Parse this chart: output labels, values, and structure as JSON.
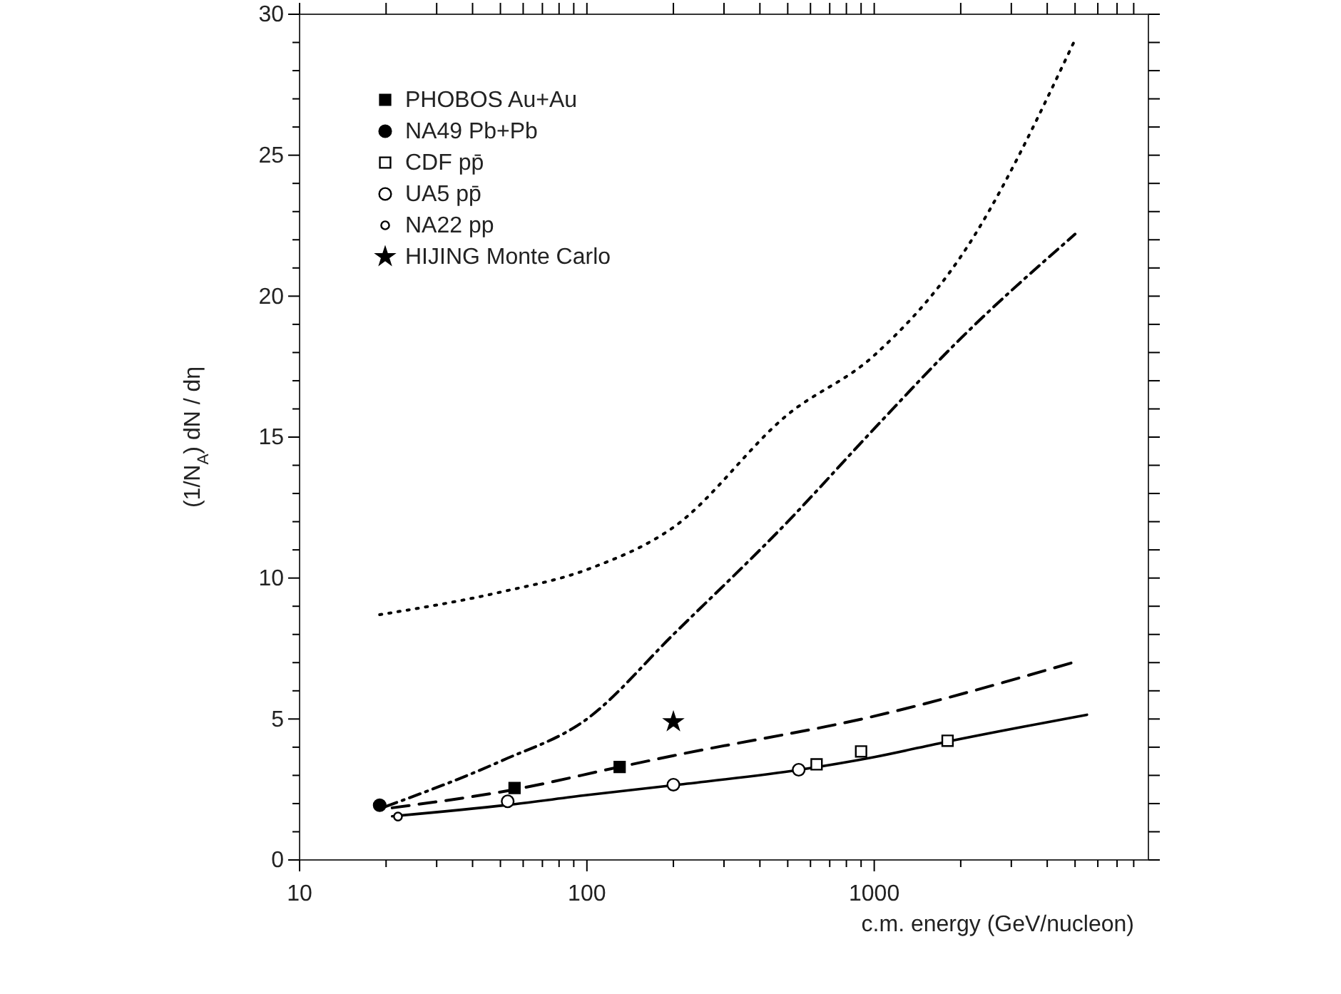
{
  "chart_data": {
    "type": "line",
    "xlabel": "c.m. energy (GeV/nucleon)",
    "ylabel": "(1/N$_{A}$) dN / dη",
    "log": "x",
    "legend": "top left",
    "grid": false,
    "xlim": [
      10,
      9000
    ],
    "xticks": [
      10,
      {
        "value": 20,
        "label": null
      },
      {
        "value": 30,
        "label": null
      },
      {
        "value": 40,
        "label": null
      },
      {
        "value": 50,
        "label": null
      },
      {
        "value": 60,
        "label": null
      },
      {
        "value": 70,
        "label": null
      },
      {
        "value": 80,
        "label": null
      },
      {
        "value": 90,
        "label": null
      },
      100,
      {
        "value": 200,
        "label": null
      },
      {
        "value": 300,
        "label": null
      },
      {
        "value": 400,
        "label": null
      },
      {
        "value": 500,
        "label": null
      },
      {
        "value": 600,
        "label": null
      },
      {
        "value": 700,
        "label": null
      },
      {
        "value": 800,
        "label": null
      },
      {
        "value": 900,
        "label": null
      },
      1000,
      {
        "value": 2000,
        "label": null
      },
      {
        "value": 3000,
        "label": null
      },
      {
        "value": 4000,
        "label": null
      },
      {
        "value": 5000,
        "label": null
      },
      {
        "value": 6000,
        "label": null
      },
      {
        "value": 7000,
        "label": null
      },
      {
        "value": 8000,
        "label": null
      }
    ],
    "ylim": [
      0,
      30
    ],
    "yticks": [
      0,
      {
        "value": 1,
        "label": null
      },
      {
        "value": 2,
        "label": null
      },
      {
        "value": 3,
        "label": null
      },
      {
        "value": 4,
        "label": null
      },
      5,
      {
        "value": 6,
        "label": null
      },
      {
        "value": 7,
        "label": null
      },
      {
        "value": 8,
        "label": null
      },
      {
        "value": 9,
        "label": null
      },
      10,
      {
        "value": 11,
        "label": null
      },
      {
        "value": 12,
        "label": null
      },
      {
        "value": 13,
        "label": null
      },
      {
        "value": 14,
        "label": null
      },
      15,
      {
        "value": 16,
        "label": null
      },
      {
        "value": 17,
        "label": null
      },
      {
        "value": 18,
        "label": null
      },
      {
        "value": 19,
        "label": null
      },
      20,
      {
        "value": 21,
        "label": null
      },
      {
        "value": 22,
        "label": null
      },
      {
        "value": 23,
        "label": null
      },
      {
        "value": 24,
        "label": null
      },
      25,
      {
        "value": 26,
        "label": null
      },
      {
        "value": 27,
        "label": null
      },
      {
        "value": 28,
        "label": null
      },
      {
        "value": 29,
        "label": null
      },
      30
    ],
    "series": [
      {
        "color": "#000000",
        "line_style": "solid",
        "x": [
          21,
          53,
          100,
          200,
          550,
          1000,
          1800,
          5500
        ],
        "values": [
          1.55,
          1.95,
          2.3,
          2.65,
          3.2,
          3.65,
          4.2,
          5.15
        ]
      },
      {
        "color": "#000000",
        "line_style": "dashed",
        "x": [
          21,
          56,
          130,
          200,
          1000,
          4900
        ],
        "values": [
          1.85,
          2.5,
          3.3,
          3.7,
          5.1,
          7.0
        ]
      },
      {
        "color": "#000000",
        "line_style": "dashdot",
        "x": [
          20,
          50,
          100,
          200,
          500,
          1000,
          2000,
          5000
        ],
        "values": [
          1.9,
          3.5,
          5.0,
          8.0,
          12.0,
          15.3,
          18.5,
          22.2
        ]
      },
      {
        "color": "#000000",
        "line_style": "dotted",
        "x": [
          19,
          50,
          100,
          200,
          500,
          1000,
          2000,
          5000
        ],
        "values": [
          8.7,
          9.5,
          10.3,
          11.8,
          15.8,
          17.9,
          21.4,
          29.1
        ]
      },
      {
        "type": "scatter",
        "name": "PHOBOS Au+Au",
        "marker": "square",
        "color": "#000000",
        "x": [
          56,
          130
        ],
        "values": [
          2.55,
          3.3
        ]
      },
      {
        "type": "scatter",
        "name": "NA49 Pb+Pb",
        "marker": "circle",
        "color": "#000000",
        "x": [
          19
        ],
        "values": [
          1.94
        ]
      },
      {
        "type": "scatter",
        "name": "CDF pp̄",
        "marker": "square",
        "color": "#ffffff",
        "x": [
          630,
          900,
          1800
        ],
        "values": [
          3.39,
          3.85,
          4.23
        ]
      },
      {
        "type": "scatter",
        "name": "UA5 pp̄",
        "marker": "circle",
        "color": "#ffffff",
        "x": [
          53,
          200,
          546
        ],
        "values": [
          2.08,
          2.67,
          3.2
        ]
      },
      {
        "type": "scatter",
        "name": "NA22 pp",
        "marker": "circle",
        "color": "#ffffff",
        "x": [
          22
        ],
        "values": [
          1.54
        ]
      },
      {
        "type": "scatter",
        "name": "HIJING Monte Carlo",
        "marker": "star",
        "color": "#000000",
        "x": [
          200
        ],
        "values": [
          4.9
        ]
      }
    ]
  }
}
